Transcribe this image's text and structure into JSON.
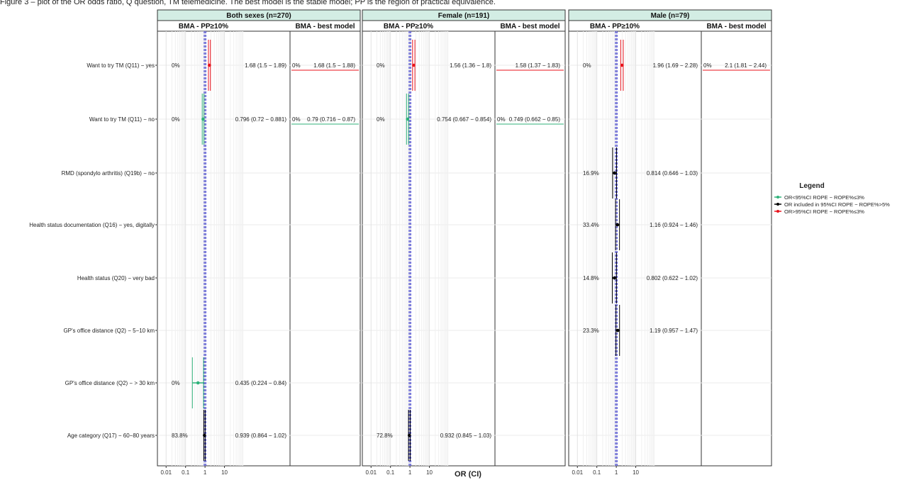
{
  "caption": "Figure 3 – plot of the OR odds ratio, Q question, TM telemedicine. The best model is the stable model; PP is the region of practical equivalence.",
  "x_axis_label": "OR (CI)",
  "legend": {
    "title": "Legend",
    "items": [
      {
        "label": "OR<95%CI ROPE − ROPE%≤3%",
        "color": "#2fb27a"
      },
      {
        "label": "OR included in 95%CI ROPE − ROPE%>5%",
        "color": "#000000"
      },
      {
        "label": "OR>95%CI ROPE − ROPE%≤3%",
        "color": "#e8131c"
      }
    ]
  },
  "chart_data": {
    "type": "forest",
    "x_scale": "log10",
    "x_ticks": [
      0.01,
      0.1,
      1,
      10
    ],
    "x_tick_labels": [
      "0.01",
      "0.1",
      "1",
      "10"
    ],
    "xlim": [
      0.007,
      100
    ],
    "reference_line": 1,
    "rope_lines": [
      0.91,
      1.1
    ],
    "grid": true,
    "legend_position": "right",
    "subcolumn_titles": [
      "BMA - PP≥10%",
      "BMA - best model"
    ],
    "rows": [
      "Want to try TM (Q11) − yes",
      "Want to try TM (Q11) − no",
      "RMD (spondylo arthritis) (Q19b) − no",
      "Health status documentation (Q16) − yes, digitally",
      "Health status (Q20) − very bad",
      "GP's office distance (Q2) − 5−10 km",
      "GP's office distance (Q2) − > 30 km",
      "Age category (Q17) − 60−80 years"
    ],
    "panels": [
      {
        "title": "Both sexes (n=270)",
        "bma": [
          {
            "row": 0,
            "or": 1.68,
            "lo": 1.5,
            "hi": 1.89,
            "pct": "0%",
            "label": "1.68 (1.5 − 1.89)",
            "color": "#e8131c"
          },
          {
            "row": 1,
            "or": 0.796,
            "lo": 0.72,
            "hi": 0.881,
            "pct": "0%",
            "label": "0.796 (0.72 − 0.881)",
            "color": "#2fb27a"
          },
          {
            "row": 6,
            "or": 0.435,
            "lo": 0.224,
            "hi": 0.84,
            "pct": "0%",
            "label": "0.435 (0.224 − 0.84)",
            "color": "#2fb27a"
          },
          {
            "row": 7,
            "or": 0.939,
            "lo": 0.864,
            "hi": 1.02,
            "pct": "83.8%",
            "label": "0.939 (0.864 − 1.02)",
            "color": "#000000"
          }
        ],
        "best": [
          {
            "row": 0,
            "pct": "0%",
            "label": "1.68 (1.5 − 1.88)",
            "color": "#e8131c"
          },
          {
            "row": 1,
            "pct": "0%",
            "label": "0.79 (0.716 − 0.87)",
            "color": "#2fb27a"
          }
        ]
      },
      {
        "title": "Female (n=191)",
        "bma": [
          {
            "row": 0,
            "or": 1.56,
            "lo": 1.36,
            "hi": 1.8,
            "pct": "0%",
            "label": "1.56 (1.36 − 1.8)",
            "color": "#e8131c"
          },
          {
            "row": 1,
            "or": 0.754,
            "lo": 0.667,
            "hi": 0.854,
            "pct": "0%",
            "label": "0.754 (0.667 − 0.854)",
            "color": "#2fb27a"
          },
          {
            "row": 7,
            "or": 0.932,
            "lo": 0.845,
            "hi": 1.03,
            "pct": "72.8%",
            "label": "0.932 (0.845 − 1.03)",
            "color": "#000000"
          }
        ],
        "best": [
          {
            "row": 0,
            "pct": "",
            "label": "1.58 (1.37 − 1.83)",
            "color": "#e8131c"
          },
          {
            "row": 1,
            "pct": "0%",
            "label": "0.749 (0.662 − 0.85)",
            "color": "#2fb27a"
          }
        ]
      },
      {
        "title": "Male (n=79)",
        "bma": [
          {
            "row": 0,
            "or": 1.96,
            "lo": 1.69,
            "hi": 2.28,
            "pct": "0%",
            "label": "1.96 (1.69 − 2.28)",
            "color": "#e8131c"
          },
          {
            "row": 2,
            "or": 0.814,
            "lo": 0.646,
            "hi": 1.03,
            "pct": "16.9%",
            "label": "0.814 (0.646 − 1.03)",
            "color": "#000000"
          },
          {
            "row": 3,
            "or": 1.16,
            "lo": 0.924,
            "hi": 1.46,
            "pct": "33.4%",
            "label": "1.16 (0.924 − 1.46)",
            "color": "#000000"
          },
          {
            "row": 4,
            "or": 0.802,
            "lo": 0.622,
            "hi": 1.02,
            "pct": "14.8%",
            "label": "0.802 (0.622 − 1.02)",
            "color": "#000000"
          },
          {
            "row": 5,
            "or": 1.19,
            "lo": 0.957,
            "hi": 1.47,
            "pct": "23.3%",
            "label": "1.19 (0.957 − 1.47)",
            "color": "#000000"
          }
        ],
        "best": [
          {
            "row": 0,
            "pct": "0%",
            "label": "2.1 (1.81 − 2.44)",
            "color": "#e8131c"
          }
        ]
      }
    ]
  }
}
